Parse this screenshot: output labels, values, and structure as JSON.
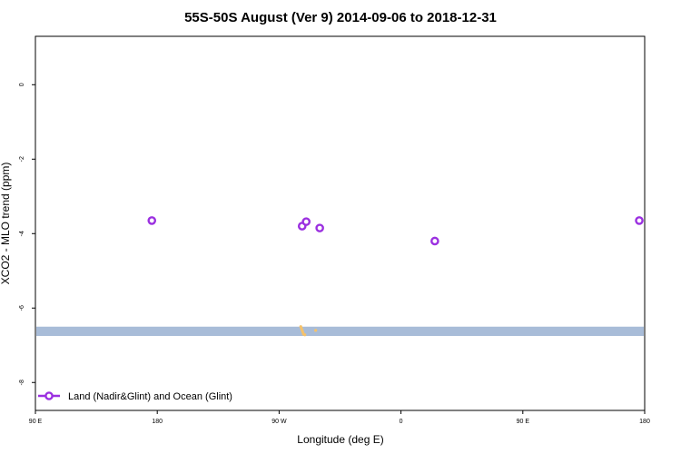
{
  "chart_data": {
    "type": "scatter",
    "title": "55S-50S August (Ver 9)   2014-09-06 to 2018-12-31",
    "xlabel": "Longitude (deg E)",
    "ylabel": "XCO2 - MLO trend (ppm)",
    "x_ticks": [
      {
        "value": 90,
        "label": "90 E"
      },
      {
        "value": 180,
        "label": "180"
      },
      {
        "value": 270,
        "label": "90 W"
      },
      {
        "value": 360,
        "label": "0"
      },
      {
        "value": 450,
        "label": "90 E"
      },
      {
        "value": 540,
        "label": "180"
      }
    ],
    "y_ticks": [
      {
        "value": 0,
        "label": "0"
      },
      {
        "value": -2,
        "label": "-2"
      },
      {
        "value": -4,
        "label": "-4"
      },
      {
        "value": -6,
        "label": "-6"
      },
      {
        "value": -8,
        "label": "-8"
      }
    ],
    "xlim": [
      90,
      540
    ],
    "ylim": [
      -8.75,
      1.3
    ],
    "series": [
      {
        "name": "Land (Nadir&Glint) and Ocean (Glint)",
        "color": "#9b30e0",
        "marker": "open-circle",
        "points": [
          {
            "x": 176,
            "y": -3.65
          },
          {
            "x": 287,
            "y": -3.8
          },
          {
            "x": 290,
            "y": -3.68
          },
          {
            "x": 300,
            "y": -3.85
          },
          {
            "x": 385,
            "y": -4.2
          },
          {
            "x": 536,
            "y": -3.65
          }
        ]
      }
    ],
    "reference_band": {
      "color": "#a8bcd8",
      "y_min": -6.75,
      "y_max": -6.5
    },
    "land_marks": {
      "color": "#f5c26b",
      "points": [
        {
          "x": 286,
          "y": -6.5
        },
        {
          "x": 286.5,
          "y": -6.55
        },
        {
          "x": 287,
          "y": -6.6
        },
        {
          "x": 287.5,
          "y": -6.65
        },
        {
          "x": 288,
          "y": -6.7
        },
        {
          "x": 289,
          "y": -6.72
        },
        {
          "x": 297,
          "y": -6.6
        }
      ]
    },
    "legend": {
      "position": "bottom-left"
    },
    "grid": false
  }
}
